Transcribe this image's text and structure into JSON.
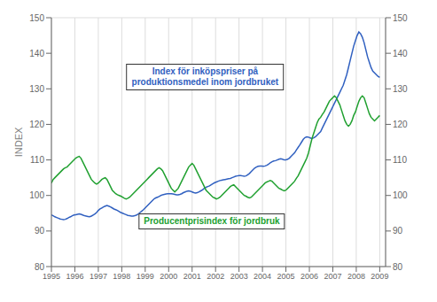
{
  "chart_data": {
    "type": "line",
    "y_label": "INDEX",
    "xlim": [
      1995.0,
      2009.25
    ],
    "xticks": [
      1995,
      1996,
      1997,
      1998,
      1999,
      2000,
      2001,
      2002,
      2003,
      2004,
      2005,
      2006,
      2007,
      2008,
      2009
    ],
    "ylim": [
      80,
      150
    ],
    "yticks": [
      80,
      90,
      100,
      110,
      120,
      130,
      140,
      150
    ],
    "y2lim": [
      80,
      150
    ],
    "y2ticks": [
      80,
      90,
      100,
      110,
      120,
      130,
      140,
      150
    ],
    "grid": true,
    "x": [
      1995,
      1995.074074,
      1995.148148,
      1995.222222,
      1995.296296,
      1995.37037,
      1995.444444,
      1995.518519,
      1995.592593,
      1995.666667,
      1995.740741,
      1995.814815,
      1995.888889,
      1995.962963,
      1996.037037,
      1996.111111,
      1996.185185,
      1996.259259,
      1996.333333,
      1996.407407,
      1996.481481,
      1996.555556,
      1996.62963,
      1996.703704,
      1996.777778,
      1996.851852,
      1996.925926,
      1997,
      1997.074074,
      1997.148148,
      1997.222222,
      1997.296296,
      1997.37037,
      1997.444444,
      1997.518519,
      1997.592593,
      1997.666667,
      1997.740741,
      1997.814815,
      1997.888889,
      1997.962963,
      1998.037037,
      1998.111111,
      1998.185185,
      1998.259259,
      1998.333333,
      1998.407407,
      1998.481481,
      1998.555556,
      1998.62963,
      1998.703704,
      1998.777778,
      1998.851852,
      1998.925926,
      1999,
      1999.074074,
      1999.148148,
      1999.222222,
      1999.296296,
      1999.37037,
      1999.444444,
      1999.518519,
      1999.592593,
      1999.666667,
      1999.740741,
      1999.814815,
      1999.888889,
      1999.962963,
      2000.037037,
      2000.111111,
      2000.185185,
      2000.259259,
      2000.333333,
      2000.407407,
      2000.481481,
      2000.555556,
      2000.62963,
      2000.703704,
      2000.777778,
      2000.851852,
      2000.925926,
      2001,
      2001.074074,
      2001.148148,
      2001.222222,
      2001.296296,
      2001.37037,
      2001.444444,
      2001.518519,
      2001.592593,
      2001.666667,
      2001.740741,
      2001.814815,
      2001.888889,
      2001.962963,
      2002.037037,
      2002.111111,
      2002.185185,
      2002.259259,
      2002.333333,
      2002.407407,
      2002.481481,
      2002.555556,
      2002.62963,
      2002.703704,
      2002.777778,
      2002.851852,
      2002.925926,
      2003,
      2003.074074,
      2003.148148,
      2003.222222,
      2003.296296,
      2003.37037,
      2003.444444,
      2003.518519,
      2003.592593,
      2003.666667,
      2003.740741,
      2003.814815,
      2003.888889,
      2003.962963,
      2004.037037,
      2004.111111,
      2004.185185,
      2004.259259,
      2004.333333,
      2004.407407,
      2004.481481,
      2004.555556,
      2004.62963,
      2004.703704,
      2004.777778,
      2004.851852,
      2004.925926,
      2005,
      2005.074074,
      2005.148148,
      2005.222222,
      2005.296296,
      2005.37037,
      2005.444444,
      2005.518519,
      2005.592593,
      2005.666667,
      2005.740741,
      2005.814815,
      2005.888889,
      2005.962963,
      2006.037037,
      2006.111111,
      2006.185185,
      2006.259259,
      2006.333333,
      2006.407407,
      2006.481481,
      2006.555556,
      2006.62963,
      2006.703704,
      2006.777778,
      2006.851852,
      2006.925926,
      2007,
      2007.074074,
      2007.148148,
      2007.222222,
      2007.296296,
      2007.37037,
      2007.444444,
      2007.518519,
      2007.592593,
      2007.666667,
      2007.740741,
      2007.814815,
      2007.888889,
      2007.962963,
      2008.037037,
      2008.111111,
      2008.185185,
      2008.259259,
      2008.333333,
      2008.407407,
      2008.481481,
      2008.555556,
      2008.62963,
      2008.703704,
      2008.777778,
      2008.851852,
      2008.925926,
      2009
    ],
    "series": [
      {
        "name": "Index för inköpspriser på\nproduktionsmedel inom jordbruket",
        "color": "#3060C0",
        "values": [
          94.5,
          94.3,
          94.0,
          93.8,
          93.6,
          93.4,
          93.3,
          93.2,
          93.3,
          93.5,
          93.8,
          94.0,
          94.3,
          94.5,
          94.6,
          94.7,
          94.8,
          94.7,
          94.5,
          94.3,
          94.2,
          94.1,
          94.0,
          94.2,
          94.5,
          94.8,
          95.2,
          95.8,
          96.2,
          96.5,
          96.8,
          97.0,
          97.2,
          97.0,
          96.8,
          96.5,
          96.2,
          96.0,
          95.8,
          95.5,
          95.2,
          95.0,
          94.8,
          94.6,
          94.4,
          94.3,
          94.2,
          94.2,
          94.3,
          94.5,
          94.8,
          95.2,
          95.6,
          96.0,
          96.5,
          97.0,
          97.5,
          98.0,
          98.5,
          99.0,
          99.3,
          99.5,
          99.7,
          100.0,
          100.2,
          100.3,
          100.4,
          100.5,
          100.5,
          100.5,
          100.4,
          100.3,
          100.2,
          100.2,
          100.3,
          100.5,
          100.8,
          101.0,
          101.2,
          101.3,
          101.2,
          101.0,
          100.8,
          100.7,
          100.8,
          101.0,
          101.3,
          101.6,
          102.0,
          102.3,
          102.5,
          102.7,
          103.0,
          103.3,
          103.6,
          103.8,
          104.0,
          104.2,
          104.3,
          104.4,
          104.5,
          104.6,
          104.7,
          104.8,
          105.0,
          105.2,
          105.4,
          105.5,
          105.6,
          105.6,
          105.5,
          105.4,
          105.5,
          105.8,
          106.2,
          106.7,
          107.2,
          107.7,
          108.0,
          108.2,
          108.3,
          108.3,
          108.2,
          108.3,
          108.5,
          108.8,
          109.2,
          109.5,
          109.7,
          109.8,
          110.0,
          110.2,
          110.3,
          110.2,
          110.0,
          110.0,
          110.2,
          110.5,
          111.0,
          111.5,
          112.0,
          112.8,
          113.5,
          114.2,
          115.0,
          115.8,
          116.3,
          116.5,
          116.4,
          116.2,
          116.0,
          116.2,
          116.5,
          117.0,
          117.5,
          118.0,
          119.0,
          120.0,
          121.0,
          122.0,
          123.0,
          124.0,
          125.0,
          126.0,
          127.0,
          128.0,
          129.0,
          130.0,
          131.0,
          132.5,
          134.0,
          136.0,
          138.0,
          140.0,
          142.0,
          143.5,
          145.0,
          146.0,
          145.5,
          144.5,
          143.0,
          141.0,
          139.0,
          137.5,
          136.0,
          135.0,
          134.5,
          134.0,
          133.5,
          133.2
        ]
      },
      {
        "name": "Producentprisindex för jordbruk",
        "color": "#20A030",
        "values": [
          103.5,
          104.5,
          105.0,
          105.5,
          106.0,
          106.5,
          107.0,
          107.5,
          107.8,
          108.0,
          108.5,
          109.0,
          109.5,
          110.0,
          110.5,
          110.8,
          111.0,
          110.5,
          109.5,
          108.5,
          107.5,
          106.5,
          105.5,
          104.5,
          104.0,
          103.5,
          103.2,
          103.5,
          104.0,
          104.5,
          104.8,
          105.0,
          104.5,
          103.5,
          102.5,
          101.5,
          101.0,
          100.5,
          100.2,
          100.0,
          99.8,
          99.5,
          99.2,
          99.0,
          99.2,
          99.5,
          100.0,
          100.5,
          101.0,
          101.5,
          102.0,
          102.5,
          103.0,
          103.5,
          104.0,
          104.5,
          105.0,
          105.5,
          106.0,
          106.5,
          107.0,
          107.5,
          107.8,
          107.5,
          107.0,
          106.0,
          105.0,
          104.0,
          103.0,
          102.0,
          101.5,
          101.0,
          101.5,
          102.0,
          103.0,
          104.0,
          105.0,
          106.0,
          107.0,
          108.0,
          108.5,
          109.0,
          108.5,
          107.5,
          106.5,
          105.5,
          104.5,
          103.5,
          102.5,
          101.5,
          101.0,
          100.5,
          100.0,
          99.5,
          99.3,
          99.0,
          99.2,
          99.5,
          100.0,
          100.5,
          101.0,
          101.5,
          102.0,
          102.5,
          102.8,
          103.0,
          102.5,
          102.0,
          101.5,
          101.0,
          100.5,
          100.0,
          99.8,
          99.5,
          99.3,
          99.5,
          100.0,
          100.5,
          101.0,
          101.5,
          102.0,
          102.5,
          103.0,
          103.5,
          103.8,
          104.0,
          104.2,
          104.0,
          103.5,
          103.0,
          102.5,
          102.0,
          101.8,
          101.5,
          101.3,
          101.5,
          102.0,
          102.5,
          103.0,
          103.5,
          104.0,
          104.8,
          105.5,
          106.5,
          107.5,
          108.5,
          109.5,
          110.5,
          112.0,
          114.0,
          116.0,
          117.5,
          119.0,
          120.5,
          121.5,
          122.0,
          122.8,
          123.5,
          124.5,
          125.5,
          126.5,
          127.0,
          127.5,
          128.0,
          127.5,
          126.5,
          125.5,
          124.0,
          122.5,
          121.0,
          120.0,
          119.5,
          120.0,
          121.0,
          122.5,
          123.5,
          125.0,
          126.5,
          127.5,
          128.0,
          127.5,
          126.0,
          124.5,
          123.0,
          122.0,
          121.5,
          121.0,
          121.5,
          122.0,
          122.5
        ]
      }
    ]
  }
}
